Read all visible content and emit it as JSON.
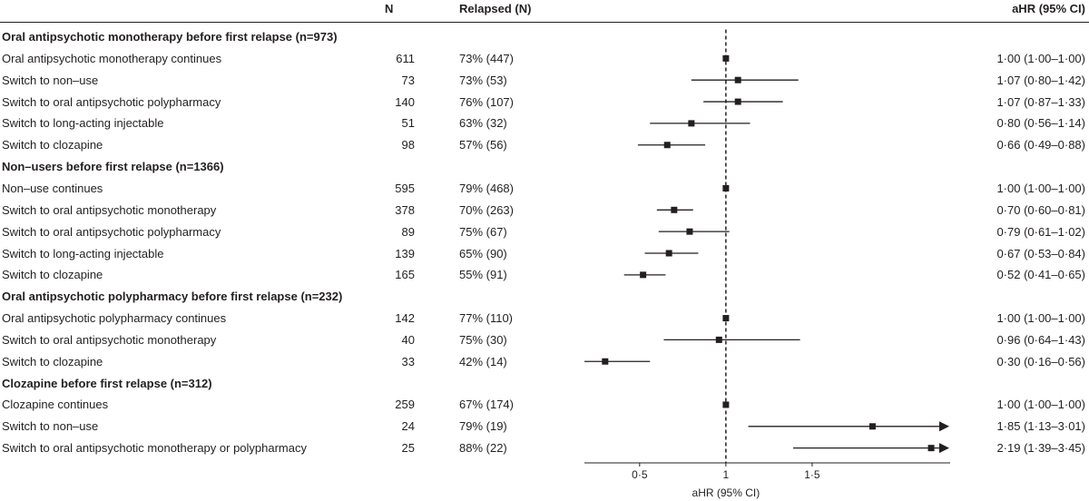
{
  "headers": {
    "n": "N",
    "relapsed": "Relapsed (N)",
    "ahr": "aHR (95% CI)"
  },
  "chart_data": {
    "type": "forest",
    "xlabel": "aHR (95% CI)",
    "ticks": [
      "0·5",
      "1",
      "1·5"
    ],
    "tick_values": [
      0.5,
      1.0,
      1.5
    ],
    "xlim": [
      0.18,
      2.3
    ],
    "reference_line": 1.0,
    "rows": [
      {
        "label": "Oral antipsychotic monotherapy before first relapse (n=973)",
        "group": true
      },
      {
        "label": "Oral antipsychotic monotherapy continues",
        "n": "611",
        "relapsed": "73% (447)",
        "ahr_text": "1·00 (1·00–1·00)",
        "hr": 1.0,
        "lo": 1.0,
        "hi": 1.0
      },
      {
        "label": "Switch to non–use",
        "n": "73",
        "relapsed": "73% (53)",
        "ahr_text": "1·07 (0·80–1·42)",
        "hr": 1.07,
        "lo": 0.8,
        "hi": 1.42
      },
      {
        "label": "Switch to oral antipsychotic polypharmacy",
        "n": "140",
        "relapsed": "76% (107)",
        "ahr_text": "1·07 (0·87–1·33)",
        "hr": 1.07,
        "lo": 0.87,
        "hi": 1.33
      },
      {
        "label": "Switch to long-acting injectable",
        "n": "51",
        "relapsed": "63% (32)",
        "ahr_text": "0·80 (0·56–1·14)",
        "hr": 0.8,
        "lo": 0.56,
        "hi": 1.14
      },
      {
        "label": "Switch to clozapine",
        "n": "98",
        "relapsed": "57% (56)",
        "ahr_text": "0·66 (0·49–0·88)",
        "hr": 0.66,
        "lo": 0.49,
        "hi": 0.88
      },
      {
        "label": "Non–users before first relapse (n=1366)",
        "group": true
      },
      {
        "label": "Non–use continues",
        "n": "595",
        "relapsed": "79% (468)",
        "ahr_text": "1·00 (1·00–1·00)",
        "hr": 1.0,
        "lo": 1.0,
        "hi": 1.0
      },
      {
        "label": "Switch to oral antipsychotic monotherapy",
        "n": "378",
        "relapsed": "70% (263)",
        "ahr_text": "0·70 (0·60–0·81)",
        "hr": 0.7,
        "lo": 0.6,
        "hi": 0.81
      },
      {
        "label": "Switch to oral antipsychotic polypharmacy",
        "n": "89",
        "relapsed": "75% (67)",
        "ahr_text": "0·79 (0·61–1·02)",
        "hr": 0.79,
        "lo": 0.61,
        "hi": 1.02
      },
      {
        "label": "Switch to long-acting injectable",
        "n": "139",
        "relapsed": "65% (90)",
        "ahr_text": "0·67 (0·53–0·84)",
        "hr": 0.67,
        "lo": 0.53,
        "hi": 0.84
      },
      {
        "label": "Switch to clozapine",
        "n": "165",
        "relapsed": "55% (91)",
        "ahr_text": "0·52 (0·41–0·65)",
        "hr": 0.52,
        "lo": 0.41,
        "hi": 0.65
      },
      {
        "label": "Oral antipsychotic polypharmacy before first relapse (n=232)",
        "group": true
      },
      {
        "label": "Oral antipsychotic polypharmacy continues",
        "n": "142",
        "relapsed": "77% (110)",
        "ahr_text": "1·00 (1·00–1·00)",
        "hr": 1.0,
        "lo": 1.0,
        "hi": 1.0
      },
      {
        "label": "Switch to oral antipsychotic monotherapy",
        "n": "40",
        "relapsed": "75% (30)",
        "ahr_text": "0·96 (0·64–1·43)",
        "hr": 0.96,
        "lo": 0.64,
        "hi": 1.43
      },
      {
        "label": "Switch to clozapine",
        "n": "33",
        "relapsed": "42% (14)",
        "ahr_text": "0·30 (0·16–0·56)",
        "hr": 0.3,
        "lo": 0.16,
        "hi": 0.56
      },
      {
        "label": "Clozapine before first relapse (n=312)",
        "group": true
      },
      {
        "label": "Clozapine continues",
        "n": "259",
        "relapsed": "67% (174)",
        "ahr_text": "1·00 (1·00–1·00)",
        "hr": 1.0,
        "lo": 1.0,
        "hi": 1.0
      },
      {
        "label": "Switch to non–use",
        "n": "24",
        "relapsed": "79% (19)",
        "ahr_text": "1·85 (1·13–3·01)",
        "hr": 1.85,
        "lo": 1.13,
        "hi": 3.01
      },
      {
        "label": "Switch to oral antipsychotic monotherapy or polypharmacy",
        "n": "25",
        "relapsed": "88% (22)",
        "ahr_text": "2·19 (1·39–3·45)",
        "hr": 2.19,
        "lo": 1.39,
        "hi": 3.45
      }
    ]
  }
}
